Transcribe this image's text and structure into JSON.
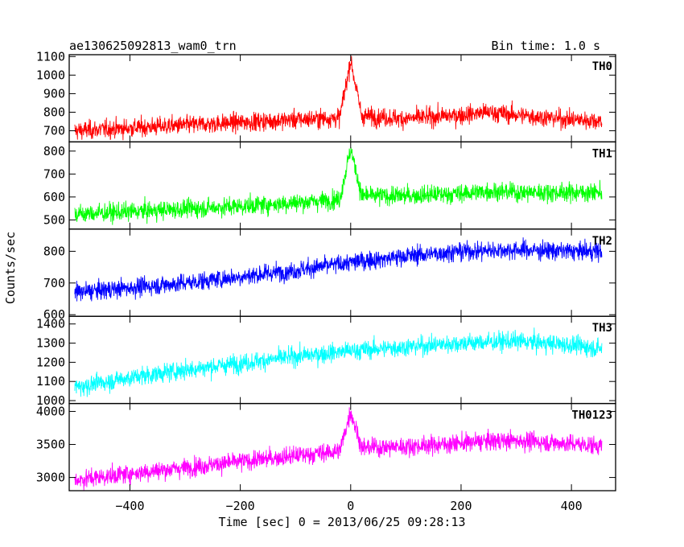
{
  "chart_data": {
    "type": "line",
    "title": "ae130625092813_wam0_trn",
    "subtitle": "Bin time: 1.0 s",
    "xlabel": "Time [sec] 0 = 2013/06/25 09:28:13",
    "ylabel": "Counts/sec",
    "xlim": [
      -510,
      480
    ],
    "xticks": [
      -400,
      -200,
      0,
      200,
      400
    ],
    "grid": false,
    "panels": [
      {
        "name": "TH0",
        "color": "#ff0000",
        "ylim": [
          640,
          1110
        ],
        "yticks": [
          700,
          800,
          900,
          1000,
          1100
        ],
        "x": [
          -500,
          -400,
          -300,
          -200,
          -100,
          -20,
          0,
          20,
          100,
          200,
          250,
          300,
          400,
          455
        ],
        "y": [
          700,
          715,
          730,
          745,
          760,
          770,
          1080,
          780,
          765,
          785,
          800,
          785,
          760,
          755
        ]
      },
      {
        "name": "TH1",
        "color": "#00ff00",
        "ylim": [
          460,
          840
        ],
        "yticks": [
          500,
          600,
          700,
          800
        ],
        "x": [
          -500,
          -400,
          -300,
          -200,
          -100,
          -20,
          0,
          20,
          100,
          200,
          250,
          300,
          400,
          455
        ],
        "y": [
          525,
          535,
          548,
          560,
          575,
          590,
          810,
          605,
          605,
          615,
          625,
          620,
          620,
          620
        ]
      },
      {
        "name": "TH2",
        "color": "#0000ff",
        "ylim": [
          595,
          870
        ],
        "yticks": [
          600,
          700,
          800
        ],
        "x": [
          -500,
          -400,
          -300,
          -200,
          -100,
          0,
          100,
          200,
          300,
          400,
          455
        ],
        "y": [
          670,
          685,
          700,
          720,
          740,
          765,
          785,
          800,
          805,
          800,
          800
        ]
      },
      {
        "name": "TH3",
        "color": "#00ffff",
        "ylim": [
          985,
          1440
        ],
        "yticks": [
          1000,
          1100,
          1200,
          1300,
          1400
        ],
        "x": [
          -500,
          -400,
          -300,
          -200,
          -100,
          0,
          100,
          200,
          300,
          400,
          455
        ],
        "y": [
          1070,
          1120,
          1160,
          1195,
          1230,
          1260,
          1280,
          1300,
          1310,
          1290,
          1270
        ]
      },
      {
        "name": "TH0123",
        "color": "#ff00ff",
        "ylim": [
          2800,
          4120
        ],
        "yticks": [
          3000,
          3500,
          4000
        ],
        "x": [
          -500,
          -400,
          -300,
          -200,
          -100,
          -20,
          0,
          20,
          100,
          200,
          250,
          300,
          400,
          455
        ],
        "y": [
          2960,
          3060,
          3150,
          3240,
          3330,
          3400,
          4000,
          3450,
          3470,
          3520,
          3550,
          3560,
          3510,
          3480
        ]
      }
    ]
  }
}
